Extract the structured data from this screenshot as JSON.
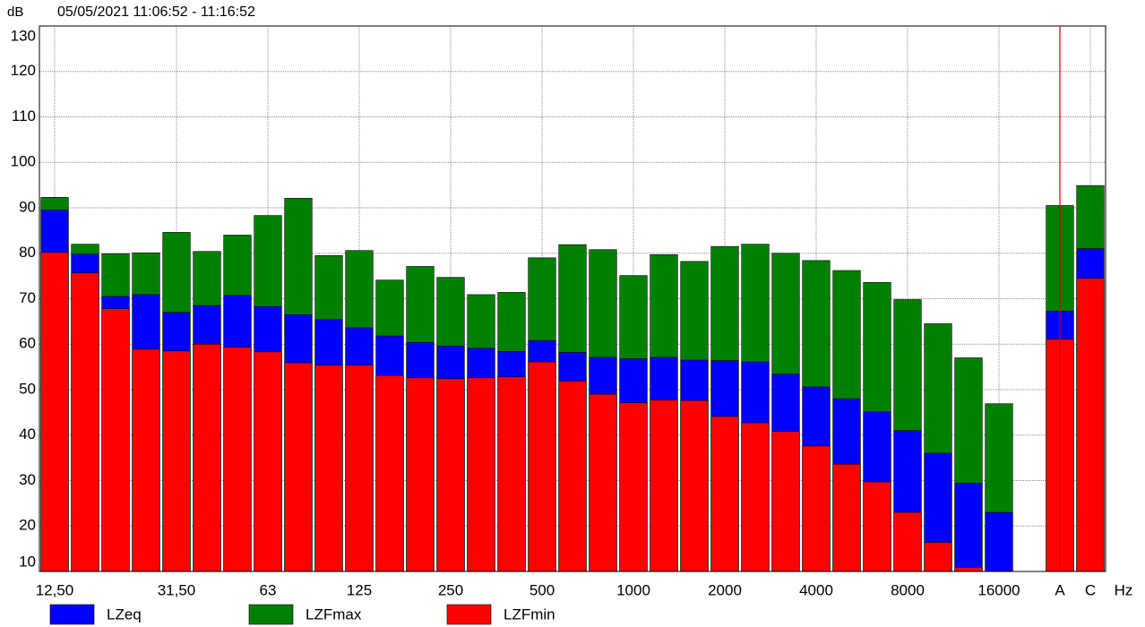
{
  "chart_data": {
    "type": "bar",
    "y_label": "dB",
    "title": "05/05/2021 11:06:52 - 11:16:52",
    "x_label": "Hz",
    "categories": [
      "12,50",
      null,
      null,
      null,
      "31,50",
      null,
      null,
      "63",
      null,
      null,
      "125",
      null,
      null,
      "250",
      null,
      null,
      "500",
      null,
      null,
      "1000",
      null,
      null,
      "2000",
      null,
      null,
      "4000",
      null,
      null,
      "8000",
      null,
      null,
      "16000",
      null,
      "A",
      "C"
    ],
    "series": [
      {
        "name": "LZeq",
        "color": "#0000ff",
        "values": [
          89.5,
          79.8,
          70.5,
          70.9,
          67,
          68.5,
          70.7,
          68.3,
          66.5,
          65.4,
          63.6,
          61.8,
          60.4,
          59.6,
          59.1,
          58.4,
          60.8,
          58.2,
          57.1,
          56.8,
          57.1,
          56.5,
          56.4,
          56.1,
          53.4,
          50.6,
          48,
          45.1,
          41,
          36,
          29.4,
          23,
          null,
          67.3,
          81
        ]
      },
      {
        "name": "LZFmax",
        "color": "#008000",
        "values": [
          92.3,
          82,
          79.9,
          80.1,
          84.6,
          80.4,
          84,
          88.3,
          92.1,
          79.5,
          80.6,
          74.1,
          77.1,
          74.7,
          70.9,
          71.4,
          79,
          81.9,
          80.8,
          75.1,
          79.7,
          78.2,
          81.5,
          82,
          80,
          78.4,
          76.2,
          73.6,
          69.8,
          64.5,
          57,
          46.9,
          null,
          90.5,
          94.9
        ]
      },
      {
        "name": "LZFmin",
        "color": "#ff0000",
        "values": [
          80.2,
          75.7,
          67.8,
          58.9,
          58.5,
          60,
          59.3,
          58.3,
          55.9,
          55.4,
          55.4,
          53.1,
          52.6,
          52.4,
          52.6,
          52.8,
          56.1,
          51.9,
          49,
          47.1,
          47.7,
          47.6,
          44.1,
          42.7,
          40.8,
          37.6,
          33.6,
          29.7,
          23,
          16.4,
          10.9,
          null,
          null,
          61.1,
          74.5
        ]
      }
    ],
    "ylim": [
      10,
      130
    ],
    "yticks": [
      10,
      20,
      30,
      40,
      50,
      60,
      70,
      80,
      90,
      100,
      110,
      120,
      130
    ],
    "grid": true
  }
}
